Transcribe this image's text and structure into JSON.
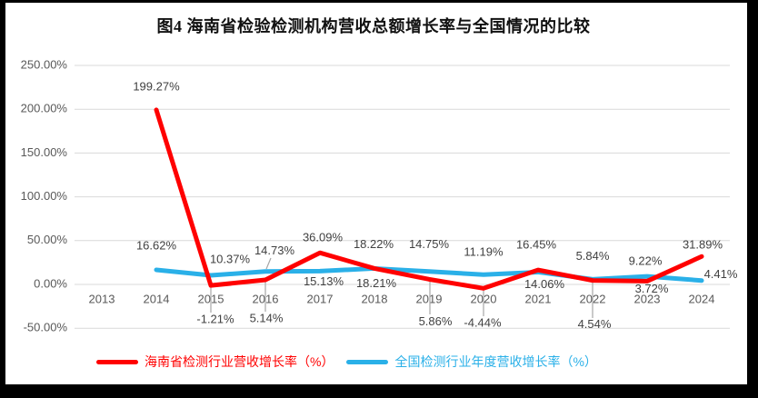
{
  "title": "图4 海南省检验检测机构营收总额增长率与全国情况的比较",
  "chart_data": {
    "type": "line",
    "x": [
      "2013",
      "2014",
      "2015",
      "2016",
      "2017",
      "2018",
      "2019",
      "2020",
      "2021",
      "2022",
      "2023",
      "2024"
    ],
    "series": [
      {
        "name": "海南省检测行业营收增长率（%）",
        "color": "#FF0000",
        "values": [
          null,
          199.27,
          -1.21,
          5.14,
          36.09,
          18.21,
          5.86,
          -4.44,
          16.45,
          4.54,
          3.72,
          31.89
        ]
      },
      {
        "name": "全国检测行业年度营收增长率（%）",
        "color": "#2AB0E8",
        "values": [
          null,
          16.62,
          10.37,
          14.73,
          15.13,
          18.22,
          14.75,
          11.19,
          14.06,
          5.84,
          9.22,
          4.41
        ]
      }
    ],
    "ylim": [
      -50,
      250
    ],
    "ytick_step": 50,
    "ytick_labels": [
      "250.00%",
      "200.00%",
      "150.00%",
      "100.00%",
      "50.00%",
      "0.00%",
      "-50.00%"
    ],
    "data_labels_format": "0.00%",
    "grid": true,
    "legend_position": "bottom"
  },
  "colors": {
    "hainan_red": "#FF0000",
    "national_blue": "#2AB0E8",
    "gridline": "#D9D9D9",
    "axis_text": "#595959",
    "label_text": "#404040",
    "leader_line": "#A6A6A6",
    "frame": "#000000",
    "background": "#FFFFFF"
  }
}
